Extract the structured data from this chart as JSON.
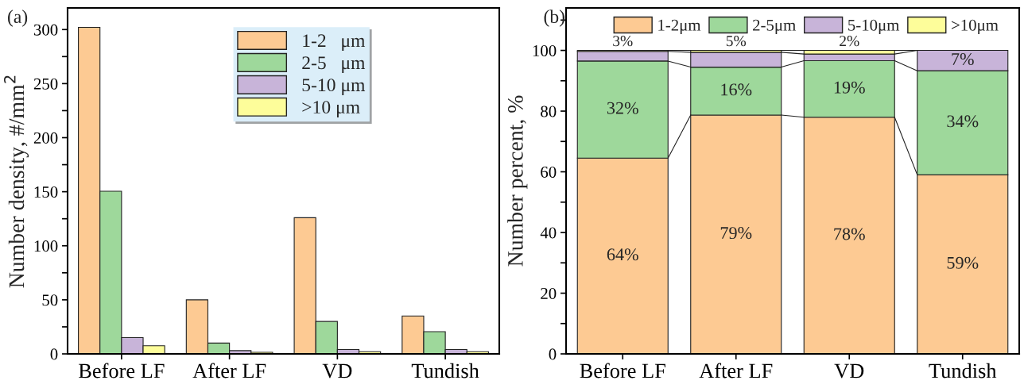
{
  "chart_data": [
    {
      "type": "bar",
      "title": "(a)",
      "ylabel": "Number density, #/mm$^{2}$",
      "categories": [
        "Before LF",
        "After LF",
        "VD",
        "Tundish"
      ],
      "series": [
        {
          "name": "1-2   μm",
          "color": "#fdca93",
          "values": [
            302,
            50,
            126,
            35
          ]
        },
        {
          "name": "2-5   μm",
          "color": "#9ed89b",
          "values": [
            150.5,
            10,
            30,
            20.5
          ]
        },
        {
          "name": "5-10 μm",
          "color": "#c8b4d9",
          "values": [
            15,
            3,
            4,
            4
          ]
        },
        {
          "name": ">10 μm",
          "color": "#fdfd9a",
          "values": [
            7.5,
            1.5,
            2,
            2
          ]
        }
      ],
      "ylim": [
        0,
        320
      ],
      "yticks": [
        0,
        {
          "value": 25,
          "label": null
        },
        50,
        {
          "value": 75,
          "label": null
        },
        100,
        {
          "value": 125,
          "label": null
        },
        150,
        {
          "value": 175,
          "label": null
        },
        200,
        {
          "value": 225,
          "label": null
        },
        250,
        {
          "value": 275,
          "label": null
        },
        300
      ],
      "legend": "top right",
      "grid": false
    },
    {
      "type": "bar",
      "title": "(b)",
      "ylabel": "Number percent, %",
      "stacked": true,
      "categories": [
        "Before LF",
        "After LF",
        "VD",
        "Tundish"
      ],
      "series": [
        {
          "name": "1-2μm",
          "color": "#fdca93",
          "values": [
            64.5,
            78.7,
            78,
            59
          ],
          "value_labels": [
            "64%",
            "79%",
            "78%",
            "59%"
          ]
        },
        {
          "name": "2-5μm",
          "color": "#9ed89b",
          "values": [
            32,
            15.8,
            18.6,
            34.3
          ],
          "value_labels": [
            "32%",
            "16%",
            "19%",
            "34%"
          ]
        },
        {
          "name": "5-10μm",
          "color": "#c8b4d9",
          "values": [
            3.2,
            4.9,
            2.2,
            6.7
          ],
          "value_labels": [
            "3%",
            "5%",
            "2%",
            "7%"
          ]
        },
        {
          "name": ">10μm",
          "color": "#fdfd9a",
          "values": [
            0.3,
            0.6,
            1.2,
            0
          ]
        }
      ],
      "ylim": [
        0,
        114
      ],
      "yticks": [
        0,
        {
          "value": 10,
          "label": null
        },
        20,
        {
          "value": 30,
          "label": null
        },
        40,
        {
          "value": 50,
          "label": null
        },
        60,
        {
          "value": 70,
          "label": null
        },
        80,
        {
          "value": 90,
          "label": null
        },
        100,
        {
          "value": 110,
          "label": null
        }
      ],
      "legend": "top",
      "grid": false
    }
  ]
}
